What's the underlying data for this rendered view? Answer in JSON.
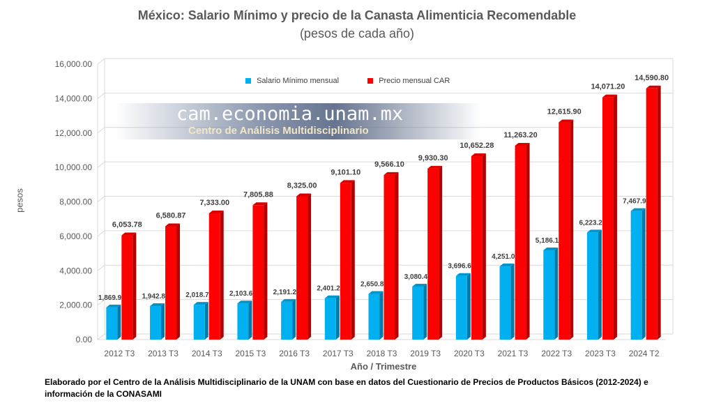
{
  "chart_data": {
    "type": "bar",
    "title": "México: Salario Mínimo y precio de la Canasta Alimenticia Recomendable",
    "subtitle": "(pesos de cada año)",
    "xlabel": "Año / Trimestre",
    "ylabel": "pesos",
    "ylim": [
      0,
      16000
    ],
    "yticks": [
      "0.00",
      "2,000.00",
      "4,000.00",
      "6,000.00",
      "8,000.00",
      "10,000.00",
      "12,000.00",
      "14,000.00",
      "16,000.00"
    ],
    "grid": true,
    "legend_position": "top",
    "categories": [
      "2012 T3",
      "2013 T3",
      "2014 T3",
      "2015 T3",
      "2016 T3",
      "2017 T3",
      "2018 T3",
      "2019 T3",
      "2020 T3",
      "2021 T3",
      "2022 T3",
      "2023 T3",
      "2024 T2"
    ],
    "series": [
      {
        "name": "Salario Mínimo mensual",
        "color": "#00b0f0",
        "values": [
          1869.9,
          1942.8,
          2018.7,
          2103.6,
          2191.2,
          2401.2,
          2650.8,
          3080.4,
          3696.6,
          4251.0,
          5186.1,
          6223.2,
          7467.9
        ],
        "labels": [
          "1,869.90",
          "1,942.80",
          "2,018.70",
          "2,103.60",
          "2,191.20",
          "2,401.20",
          "2,650.80",
          "3,080.40",
          "3,696.60",
          "4,251.00",
          "5,186.10",
          "6,223.20",
          "7,467.90"
        ]
      },
      {
        "name": "Precio mensual CAR",
        "color": "#ff0000",
        "values": [
          6053.78,
          6580.87,
          7333.0,
          7805.88,
          8325.0,
          9101.1,
          9566.1,
          9930.3,
          10652.28,
          11263.2,
          12615.9,
          14071.2,
          14590.8
        ],
        "labels": [
          "6,053.78",
          "6,580.87",
          "7,333.00",
          "7,805.88",
          "8,325.00",
          "9,101.10",
          "9,566.10",
          "9,930.30",
          "10,652.28",
          "11,263.20",
          "12,615.90",
          "14,071.20",
          "14,590.80"
        ]
      }
    ]
  },
  "watermark": {
    "url": "cam.economia.unam.mx",
    "name": "Centro de Análisis Multidisciplinario"
  },
  "footnote": "Elaborado por el Centro de la Análisis Multidisciplinario de la UNAM con base en datos del Cuestionario de Precios de Productos Básicos (2012-2024) e información de la CONASAMI"
}
